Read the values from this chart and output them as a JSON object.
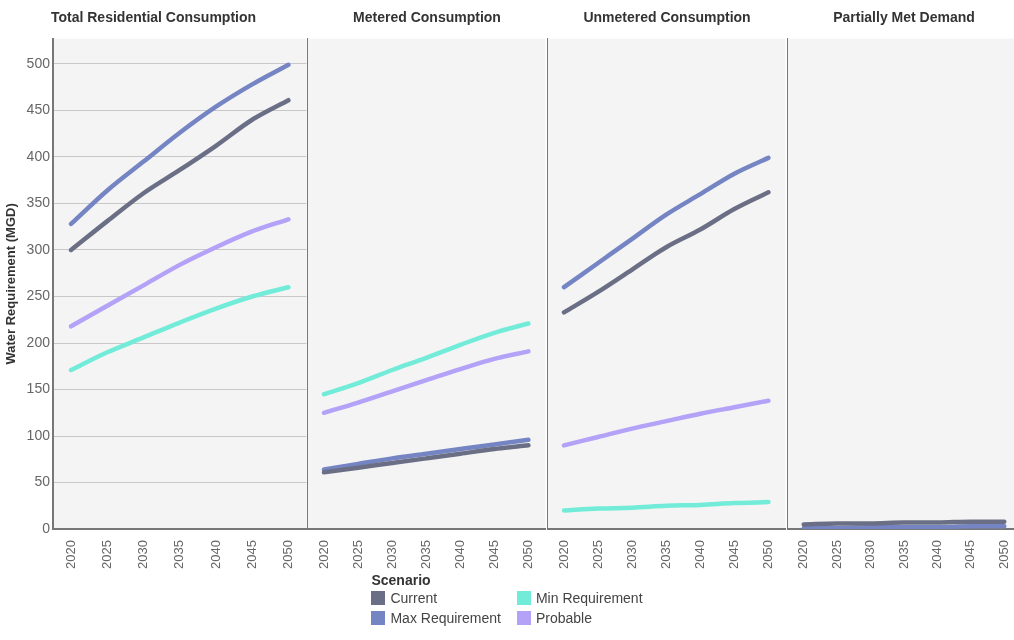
{
  "chart_data": [
    {
      "type": "line",
      "title": "Total Residential Consumption",
      "ylabel": "Water Requirement (MGD)",
      "legend_title": "Scenario",
      "legend": "bottom",
      "grid": "y",
      "marker": "none",
      "x": [
        2020,
        2025,
        2030,
        2035,
        2040,
        2045,
        2050
      ],
      "xlim": [
        2017.5,
        2052.5
      ],
      "xticks": [
        2020,
        2025,
        2030,
        2035,
        2040,
        2045,
        2050
      ],
      "ylim": [
        0,
        527
      ],
      "yticks": [
        0,
        50,
        100,
        150,
        200,
        250,
        300,
        350,
        400,
        450,
        500
      ],
      "series": [
        {
          "name": "Current",
          "color": "#6b6f85",
          "values": [
            300,
            331,
            361,
            386,
            412,
            440,
            461
          ]
        },
        {
          "name": "Max Requirement",
          "color": "#7585c4",
          "values": [
            328,
            364,
            395,
            426,
            454,
            478,
            499
          ]
        },
        {
          "name": "Min Requirement",
          "color": "#72ecd8",
          "values": [
            171,
            190,
            206,
            222,
            237,
            250,
            260
          ]
        },
        {
          "name": "Probable",
          "color": "#b3a2f7",
          "values": [
            218,
            240,
            262,
            284,
            303,
            320,
            333
          ]
        }
      ]
    },
    {
      "type": "line",
      "title": "Metered Consumption",
      "grid": "y",
      "marker": "none",
      "tick_labels": "x",
      "x": [
        2020,
        2025,
        2030,
        2035,
        2040,
        2045,
        2050
      ],
      "xlim": [
        2017.5,
        2052.5
      ],
      "xticks": [
        2020,
        2025,
        2030,
        2035,
        2040,
        2045,
        2050
      ],
      "ylim": [
        0,
        527
      ],
      "series": [
        {
          "color": "#6b6f85",
          "values": [
            61,
            66,
            71,
            76,
            81,
            86,
            90
          ]
        },
        {
          "color": "#7585c4",
          "values": [
            64,
            70,
            76,
            81,
            86,
            91,
            96
          ]
        },
        {
          "color": "#72ecd8",
          "values": [
            145,
            157,
            171,
            184,
            198,
            211,
            221
          ]
        },
        {
          "color": "#b3a2f7",
          "values": [
            125,
            136,
            148,
            160,
            172,
            183,
            191
          ]
        }
      ]
    },
    {
      "type": "line",
      "title": "Unmetered Consumption",
      "grid": "y",
      "marker": "none",
      "tick_labels": "x",
      "x": [
        2020,
        2025,
        2030,
        2035,
        2040,
        2045,
        2050
      ],
      "xlim": [
        2017.5,
        2052.5
      ],
      "xticks": [
        2020,
        2025,
        2030,
        2035,
        2040,
        2045,
        2050
      ],
      "ylim": [
        0,
        527
      ],
      "series": [
        {
          "color": "#6b6f85",
          "values": [
            233,
            255,
            279,
            303,
            322,
            344,
            362
          ]
        },
        {
          "color": "#7585c4",
          "values": [
            260,
            286,
            312,
            338,
            360,
            382,
            399
          ]
        },
        {
          "color": "#72ecd8",
          "values": [
            20,
            22,
            23,
            25,
            26,
            28,
            29
          ]
        },
        {
          "color": "#b3a2f7",
          "values": [
            90,
            99,
            108,
            116,
            124,
            131,
            138
          ]
        }
      ]
    },
    {
      "type": "line",
      "title": "Partially Met Demand",
      "grid": "y",
      "marker": "none",
      "tick_labels": "x",
      "x": [
        2020,
        2025,
        2030,
        2035,
        2040,
        2045,
        2050
      ],
      "xlim": [
        2017.5,
        2052.5
      ],
      "xticks": [
        2020,
        2025,
        2030,
        2035,
        2040,
        2045,
        2050
      ],
      "ylim": [
        0,
        527
      ],
      "series": [
        {
          "color": "#6b6f85",
          "values": [
            5,
            6,
            6,
            7,
            7,
            8,
            8
          ]
        },
        {
          "color": "#7585c4",
          "values": [
            1,
            1,
            2,
            2,
            2,
            3,
            3
          ]
        },
        {
          "color": "#72ecd8",
          "values": [
            null,
            null,
            null,
            null,
            null,
            null,
            null
          ]
        },
        {
          "color": "#b3a2f7",
          "values": [
            null,
            null,
            null,
            null,
            null,
            null,
            null
          ]
        }
      ]
    }
  ]
}
